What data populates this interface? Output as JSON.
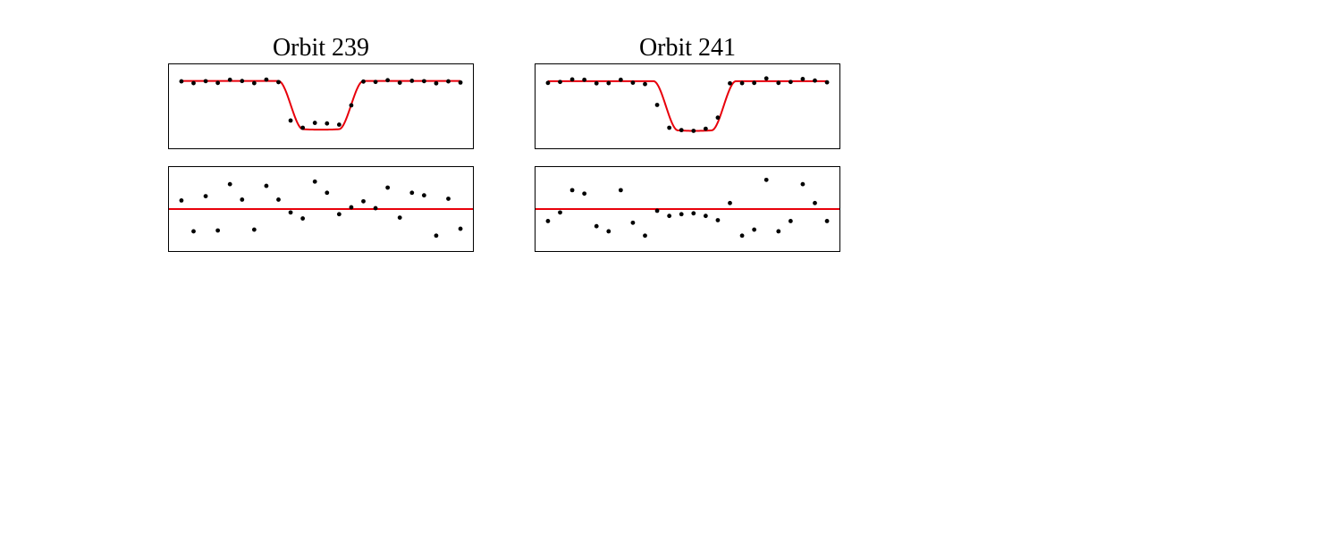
{
  "orbits": {
    "left_title": "Orbit 239",
    "right_title": "Orbit 241"
  },
  "colors": {
    "model": "#e8000b",
    "points": "#000000",
    "frame": "#000000"
  },
  "chart_data": [
    {
      "type": "scatter",
      "panel": "light curve",
      "title": "Orbit 239",
      "x": [
        0,
        1,
        2,
        3,
        4,
        5,
        6,
        7,
        8,
        9,
        10,
        11,
        12,
        13,
        14,
        15,
        16,
        17,
        18,
        19,
        20,
        21,
        22,
        23
      ],
      "y": [
        0.996,
        0.978,
        0.998,
        0.98,
        1.012,
        1.0,
        0.978,
        1.014,
        0.988,
        0.594,
        0.52,
        0.57,
        0.564,
        0.552,
        0.75,
        0.994,
        0.99,
        1.008,
        0.982,
        1.002,
        0.998,
        0.976,
        0.996,
        0.984
      ],
      "model": {
        "baseline": 1.0,
        "depth": 0.5,
        "mid": 11.5,
        "bottom_half_width": 1.5,
        "edge_width": 2.0
      },
      "xlim": [
        -1.1,
        24.1
      ],
      "ylim": [
        0.3,
        1.18
      ],
      "grid": false
    },
    {
      "type": "scatter",
      "panel": "residuals",
      "title": "",
      "x": [
        0,
        1,
        2,
        3,
        4,
        5,
        6,
        7,
        8,
        9,
        10,
        11,
        12,
        13,
        14,
        15,
        16,
        17,
        18,
        19,
        20,
        21,
        22,
        23
      ],
      "y": [
        0.1,
        -0.26,
        0.15,
        -0.25,
        0.29,
        0.11,
        -0.24,
        0.27,
        0.11,
        -0.04,
        -0.11,
        0.32,
        0.19,
        -0.06,
        0.02,
        0.09,
        0.01,
        0.25,
        -0.1,
        0.19,
        0.16,
        -0.31,
        0.12,
        -0.23
      ],
      "model": {
        "constant": 0
      },
      "xlim": [
        -1.1,
        24.1
      ],
      "ylim": [
        -0.5,
        0.5
      ],
      "grid": false
    },
    {
      "type": "scatter",
      "panel": "light curve",
      "title": "Orbit 241",
      "x": [
        0,
        1,
        2,
        3,
        4,
        5,
        6,
        7,
        8,
        9,
        10,
        11,
        12,
        13,
        14,
        15,
        16,
        17,
        18,
        19,
        20,
        21,
        22,
        23
      ],
      "y": [
        0.98,
        0.99,
        1.016,
        1.012,
        0.976,
        0.978,
        1.012,
        0.982,
        0.968,
        0.754,
        0.52,
        0.496,
        0.488,
        0.51,
        0.624,
        0.976,
        0.978,
        0.98,
        1.026,
        0.98,
        0.99,
        1.02,
        1.004,
        0.986
      ],
      "model": {
        "baseline": 0.998,
        "depth": 0.51,
        "mid": 12.1,
        "bottom_half_width": 1.4,
        "edge_width": 2.0
      },
      "xlim": [
        -1.1,
        24.1
      ],
      "ylim": [
        0.3,
        1.18
      ],
      "grid": false
    },
    {
      "type": "scatter",
      "panel": "residuals",
      "title": "",
      "x": [
        0,
        1,
        2,
        3,
        4,
        5,
        6,
        7,
        8,
        9,
        10,
        11,
        12,
        13,
        14,
        15,
        16,
        17,
        18,
        19,
        20,
        21,
        22,
        23
      ],
      "y": [
        -0.14,
        -0.04,
        0.22,
        0.18,
        -0.2,
        -0.26,
        0.22,
        -0.16,
        -0.31,
        -0.02,
        -0.08,
        -0.06,
        -0.05,
        -0.08,
        -0.13,
        0.07,
        -0.31,
        -0.24,
        0.34,
        -0.26,
        -0.14,
        0.29,
        0.07,
        -0.14
      ],
      "model": {
        "constant": 0
      },
      "xlim": [
        -1.1,
        24.1
      ],
      "ylim": [
        -0.5,
        0.5
      ],
      "grid": false
    }
  ]
}
